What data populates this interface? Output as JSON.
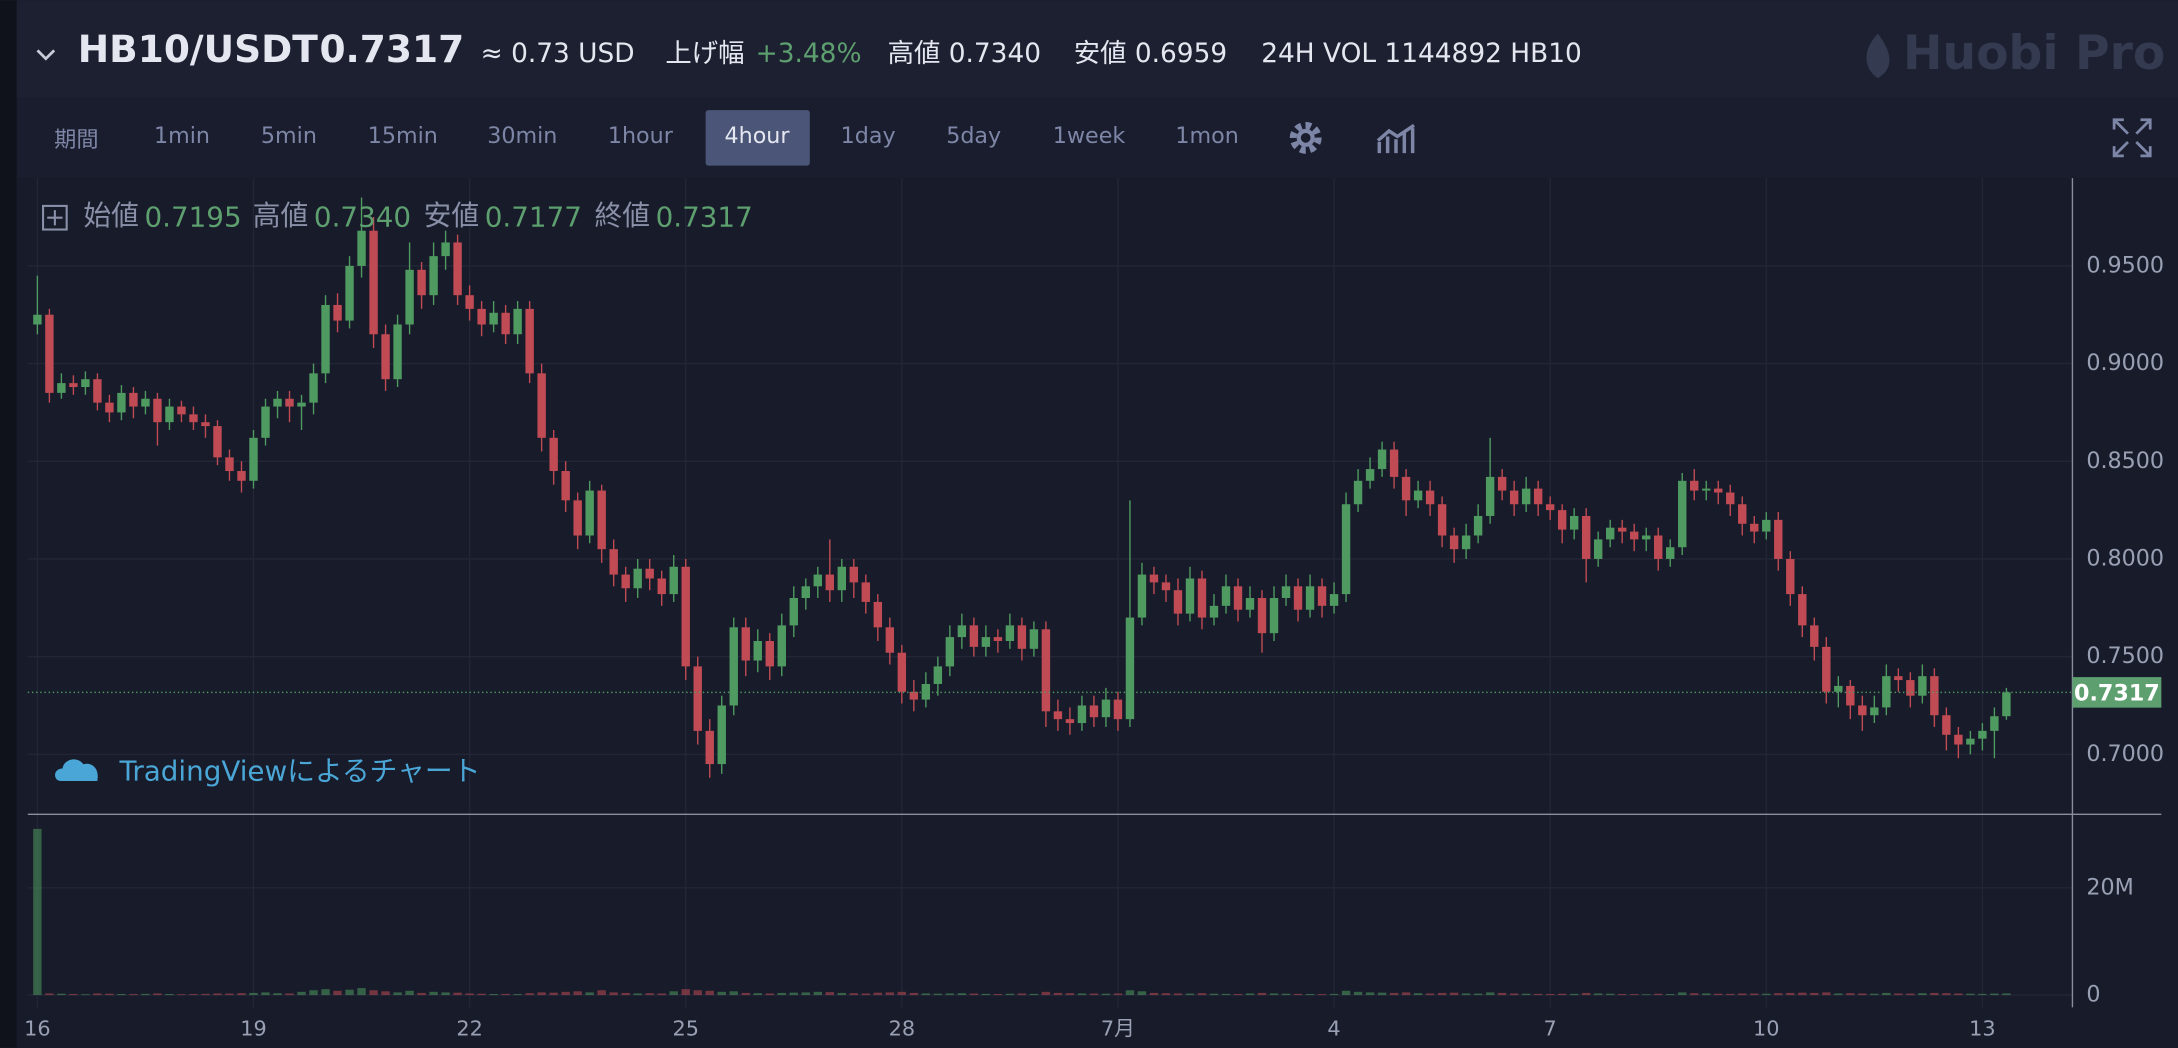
{
  "header": {
    "pair": "HB10/USDT",
    "price": "0.7317",
    "usd": "≈ 0.73 USD",
    "change_label": "上げ幅",
    "change": "+3.48%",
    "high": "高値 0.7340",
    "low": "安値 0.6959",
    "volume": "24H VOL 1144892 HB10",
    "logo": "Huobi Pro"
  },
  "toolbar": {
    "period_label": "期間",
    "intervals": [
      "1min",
      "5min",
      "15min",
      "30min",
      "1hour",
      "4hour",
      "1day",
      "5day",
      "1week",
      "1mon"
    ],
    "active": "4hour"
  },
  "chart_data": {
    "type": "candlestick",
    "watermark": "TradingViewによるチャート",
    "ohlc_legend": [
      {
        "label": "始値",
        "value": "0.7195"
      },
      {
        "label": "高値",
        "value": "0.7340"
      },
      {
        "label": "安値",
        "value": "0.7177"
      },
      {
        "label": "終値",
        "value": "0.7317"
      }
    ],
    "up_color": "#4e9a61",
    "down_color": "#c04b54",
    "grid": true,
    "ylim": [
      0.67,
      0.9935
    ],
    "yticks": [
      {
        "value": 0.7,
        "label": "0.7000"
      },
      {
        "value": 0.75,
        "label": "0.7500"
      },
      {
        "value": 0.8,
        "label": "0.8000"
      },
      {
        "value": 0.85,
        "label": "0.8500"
      },
      {
        "value": 0.9,
        "label": "0.9000"
      },
      {
        "value": 0.95,
        "label": "0.9500"
      }
    ],
    "volume_ylim": [
      -2300000,
      33200000
    ],
    "volume_yticks": [
      {
        "value": 0,
        "label": "0"
      },
      {
        "value": 20000000,
        "label": "20M"
      }
    ],
    "xlim": [
      -0.8,
      169.5
    ],
    "xticks": [
      {
        "value": 0,
        "label": "16"
      },
      {
        "value": 18,
        "label": "19"
      },
      {
        "value": 36,
        "label": "22"
      },
      {
        "value": 54,
        "label": "25"
      },
      {
        "value": 72,
        "label": "28"
      },
      {
        "value": 90,
        "label": "7月"
      },
      {
        "value": 108,
        "label": "4"
      },
      {
        "value": 126,
        "label": "7"
      },
      {
        "value": 144,
        "label": "10"
      },
      {
        "value": 162,
        "label": "13"
      }
    ],
    "ohlc": [
      [
        0.92,
        0.945,
        0.915,
        0.925
      ],
      [
        0.925,
        0.928,
        0.88,
        0.885
      ],
      [
        0.885,
        0.895,
        0.882,
        0.89
      ],
      [
        0.89,
        0.894,
        0.884,
        0.888
      ],
      [
        0.888,
        0.896,
        0.884,
        0.892
      ],
      [
        0.892,
        0.895,
        0.876,
        0.88
      ],
      [
        0.88,
        0.884,
        0.87,
        0.875
      ],
      [
        0.875,
        0.889,
        0.871,
        0.885
      ],
      [
        0.885,
        0.888,
        0.872,
        0.878
      ],
      [
        0.878,
        0.886,
        0.874,
        0.882
      ],
      [
        0.882,
        0.885,
        0.858,
        0.87
      ],
      [
        0.87,
        0.882,
        0.866,
        0.878
      ],
      [
        0.878,
        0.881,
        0.87,
        0.874
      ],
      [
        0.874,
        0.878,
        0.866,
        0.87
      ],
      [
        0.87,
        0.874,
        0.862,
        0.868
      ],
      [
        0.868,
        0.871,
        0.848,
        0.852
      ],
      [
        0.852,
        0.856,
        0.84,
        0.845
      ],
      [
        0.845,
        0.85,
        0.834,
        0.84
      ],
      [
        0.84,
        0.866,
        0.836,
        0.862
      ],
      [
        0.862,
        0.882,
        0.858,
        0.878
      ],
      [
        0.878,
        0.886,
        0.872,
        0.882
      ],
      [
        0.882,
        0.886,
        0.87,
        0.878
      ],
      [
        0.878,
        0.884,
        0.866,
        0.88
      ],
      [
        0.88,
        0.9,
        0.874,
        0.895
      ],
      [
        0.895,
        0.935,
        0.89,
        0.93
      ],
      [
        0.93,
        0.936,
        0.916,
        0.922
      ],
      [
        0.922,
        0.955,
        0.918,
        0.95
      ],
      [
        0.95,
        0.985,
        0.944,
        0.968
      ],
      [
        0.968,
        0.975,
        0.908,
        0.915
      ],
      [
        0.915,
        0.92,
        0.886,
        0.892
      ],
      [
        0.892,
        0.925,
        0.888,
        0.92
      ],
      [
        0.92,
        0.962,
        0.915,
        0.948
      ],
      [
        0.948,
        0.952,
        0.928,
        0.935
      ],
      [
        0.935,
        0.962,
        0.93,
        0.955
      ],
      [
        0.955,
        0.968,
        0.948,
        0.962
      ],
      [
        0.962,
        0.966,
        0.93,
        0.935
      ],
      [
        0.935,
        0.94,
        0.922,
        0.928
      ],
      [
        0.928,
        0.932,
        0.914,
        0.92
      ],
      [
        0.92,
        0.932,
        0.916,
        0.926
      ],
      [
        0.926,
        0.93,
        0.91,
        0.915
      ],
      [
        0.915,
        0.932,
        0.91,
        0.928
      ],
      [
        0.928,
        0.932,
        0.89,
        0.895
      ],
      [
        0.895,
        0.9,
        0.855,
        0.862
      ],
      [
        0.862,
        0.866,
        0.838,
        0.845
      ],
      [
        0.845,
        0.85,
        0.824,
        0.83
      ],
      [
        0.83,
        0.834,
        0.805,
        0.812
      ],
      [
        0.812,
        0.84,
        0.808,
        0.835
      ],
      [
        0.835,
        0.838,
        0.798,
        0.805
      ],
      [
        0.805,
        0.81,
        0.786,
        0.792
      ],
      [
        0.792,
        0.796,
        0.778,
        0.785
      ],
      [
        0.785,
        0.8,
        0.78,
        0.795
      ],
      [
        0.795,
        0.8,
        0.784,
        0.79
      ],
      [
        0.79,
        0.794,
        0.776,
        0.782
      ],
      [
        0.782,
        0.802,
        0.778,
        0.796
      ],
      [
        0.796,
        0.8,
        0.738,
        0.745
      ],
      [
        0.745,
        0.75,
        0.705,
        0.712
      ],
      [
        0.712,
        0.718,
        0.688,
        0.695
      ],
      [
        0.695,
        0.73,
        0.69,
        0.725
      ],
      [
        0.725,
        0.77,
        0.72,
        0.765
      ],
      [
        0.765,
        0.77,
        0.74,
        0.748
      ],
      [
        0.748,
        0.764,
        0.742,
        0.758
      ],
      [
        0.758,
        0.762,
        0.738,
        0.745
      ],
      [
        0.745,
        0.772,
        0.74,
        0.766
      ],
      [
        0.766,
        0.786,
        0.76,
        0.78
      ],
      [
        0.78,
        0.79,
        0.774,
        0.786
      ],
      [
        0.786,
        0.796,
        0.78,
        0.792
      ],
      [
        0.792,
        0.81,
        0.778,
        0.784
      ],
      [
        0.784,
        0.8,
        0.778,
        0.796
      ],
      [
        0.796,
        0.8,
        0.78,
        0.788
      ],
      [
        0.788,
        0.792,
        0.772,
        0.778
      ],
      [
        0.778,
        0.782,
        0.758,
        0.765
      ],
      [
        0.765,
        0.77,
        0.746,
        0.752
      ],
      [
        0.752,
        0.756,
        0.726,
        0.732
      ],
      [
        0.732,
        0.738,
        0.722,
        0.728
      ],
      [
        0.728,
        0.742,
        0.724,
        0.736
      ],
      [
        0.736,
        0.75,
        0.73,
        0.745
      ],
      [
        0.745,
        0.766,
        0.74,
        0.76
      ],
      [
        0.76,
        0.772,
        0.754,
        0.766
      ],
      [
        0.766,
        0.77,
        0.75,
        0.755
      ],
      [
        0.755,
        0.766,
        0.75,
        0.76
      ],
      [
        0.76,
        0.764,
        0.752,
        0.758
      ],
      [
        0.758,
        0.772,
        0.754,
        0.766
      ],
      [
        0.766,
        0.77,
        0.748,
        0.754
      ],
      [
        0.754,
        0.768,
        0.75,
        0.764
      ],
      [
        0.764,
        0.768,
        0.714,
        0.722
      ],
      [
        0.722,
        0.728,
        0.712,
        0.718
      ],
      [
        0.718,
        0.724,
        0.71,
        0.716
      ],
      [
        0.716,
        0.73,
        0.712,
        0.725
      ],
      [
        0.725,
        0.73,
        0.714,
        0.719
      ],
      [
        0.719,
        0.734,
        0.714,
        0.728
      ],
      [
        0.728,
        0.732,
        0.712,
        0.718
      ],
      [
        0.718,
        0.83,
        0.714,
        0.77
      ],
      [
        0.77,
        0.798,
        0.766,
        0.792
      ],
      [
        0.792,
        0.796,
        0.782,
        0.788
      ],
      [
        0.788,
        0.792,
        0.778,
        0.784
      ],
      [
        0.784,
        0.79,
        0.766,
        0.772
      ],
      [
        0.772,
        0.796,
        0.768,
        0.79
      ],
      [
        0.79,
        0.794,
        0.764,
        0.77
      ],
      [
        0.77,
        0.782,
        0.766,
        0.776
      ],
      [
        0.776,
        0.792,
        0.772,
        0.786
      ],
      [
        0.786,
        0.79,
        0.768,
        0.774
      ],
      [
        0.774,
        0.786,
        0.77,
        0.78
      ],
      [
        0.78,
        0.784,
        0.752,
        0.762
      ],
      [
        0.762,
        0.786,
        0.758,
        0.78
      ],
      [
        0.78,
        0.792,
        0.776,
        0.786
      ],
      [
        0.786,
        0.79,
        0.768,
        0.774
      ],
      [
        0.774,
        0.792,
        0.77,
        0.786
      ],
      [
        0.786,
        0.79,
        0.77,
        0.776
      ],
      [
        0.776,
        0.788,
        0.772,
        0.782
      ],
      [
        0.782,
        0.834,
        0.778,
        0.828
      ],
      [
        0.828,
        0.846,
        0.824,
        0.84
      ],
      [
        0.84,
        0.852,
        0.836,
        0.846
      ],
      [
        0.846,
        0.86,
        0.842,
        0.856
      ],
      [
        0.856,
        0.86,
        0.836,
        0.842
      ],
      [
        0.842,
        0.846,
        0.822,
        0.83
      ],
      [
        0.83,
        0.84,
        0.826,
        0.835
      ],
      [
        0.835,
        0.84,
        0.822,
        0.828
      ],
      [
        0.828,
        0.832,
        0.806,
        0.812
      ],
      [
        0.812,
        0.816,
        0.798,
        0.805
      ],
      [
        0.805,
        0.818,
        0.8,
        0.812
      ],
      [
        0.812,
        0.828,
        0.808,
        0.822
      ],
      [
        0.822,
        0.862,
        0.818,
        0.842
      ],
      [
        0.842,
        0.846,
        0.83,
        0.835
      ],
      [
        0.835,
        0.84,
        0.822,
        0.828
      ],
      [
        0.828,
        0.842,
        0.824,
        0.836
      ],
      [
        0.836,
        0.84,
        0.822,
        0.828
      ],
      [
        0.828,
        0.832,
        0.82,
        0.825
      ],
      [
        0.825,
        0.828,
        0.808,
        0.815
      ],
      [
        0.815,
        0.826,
        0.81,
        0.822
      ],
      [
        0.822,
        0.826,
        0.788,
        0.8
      ],
      [
        0.8,
        0.814,
        0.796,
        0.81
      ],
      [
        0.81,
        0.82,
        0.806,
        0.816
      ],
      [
        0.816,
        0.82,
        0.808,
        0.814
      ],
      [
        0.814,
        0.818,
        0.804,
        0.81
      ],
      [
        0.81,
        0.816,
        0.804,
        0.812
      ],
      [
        0.812,
        0.816,
        0.794,
        0.8
      ],
      [
        0.8,
        0.81,
        0.796,
        0.806
      ],
      [
        0.806,
        0.844,
        0.802,
        0.84
      ],
      [
        0.84,
        0.846,
        0.83,
        0.835
      ],
      [
        0.835,
        0.84,
        0.83,
        0.836
      ],
      [
        0.836,
        0.84,
        0.828,
        0.834
      ],
      [
        0.834,
        0.838,
        0.822,
        0.828
      ],
      [
        0.828,
        0.832,
        0.812,
        0.818
      ],
      [
        0.818,
        0.822,
        0.808,
        0.814
      ],
      [
        0.814,
        0.824,
        0.81,
        0.82
      ],
      [
        0.82,
        0.824,
        0.794,
        0.8
      ],
      [
        0.8,
        0.804,
        0.776,
        0.782
      ],
      [
        0.782,
        0.786,
        0.76,
        0.766
      ],
      [
        0.766,
        0.77,
        0.748,
        0.755
      ],
      [
        0.755,
        0.76,
        0.726,
        0.732
      ],
      [
        0.732,
        0.74,
        0.724,
        0.735
      ],
      [
        0.735,
        0.738,
        0.718,
        0.725
      ],
      [
        0.725,
        0.73,
        0.712,
        0.72
      ],
      [
        0.72,
        0.73,
        0.716,
        0.724
      ],
      [
        0.724,
        0.746,
        0.72,
        0.74
      ],
      [
        0.74,
        0.744,
        0.732,
        0.738
      ],
      [
        0.738,
        0.742,
        0.724,
        0.73
      ],
      [
        0.73,
        0.746,
        0.726,
        0.74
      ],
      [
        0.74,
        0.744,
        0.714,
        0.72
      ],
      [
        0.72,
        0.724,
        0.702,
        0.71
      ],
      [
        0.71,
        0.714,
        0.698,
        0.705
      ],
      [
        0.705,
        0.712,
        0.7,
        0.708
      ],
      [
        0.708,
        0.716,
        0.702,
        0.712
      ],
      [
        0.712,
        0.724,
        0.698,
        0.7195
      ],
      [
        0.7195,
        0.734,
        0.7177,
        0.7317
      ]
    ],
    "volumes": [
      31000000,
      300000,
      250000,
      200000,
      150000,
      300000,
      250000,
      200000,
      180000,
      220000,
      300000,
      200000,
      150000,
      180000,
      220000,
      300000,
      280000,
      350000,
      400000,
      500000,
      350000,
      300000,
      600000,
      900000,
      1100000,
      800000,
      1000000,
      1300000,
      900000,
      700000,
      500000,
      800000,
      400000,
      600000,
      500000,
      450000,
      300000,
      250000,
      200000,
      220000,
      180000,
      350000,
      500000,
      450000,
      600000,
      700000,
      500000,
      900000,
      500000,
      400000,
      300000,
      350000,
      300000,
      700000,
      1100000,
      900000,
      800000,
      600000,
      700000,
      400000,
      350000,
      300000,
      400000,
      450000,
      500000,
      600000,
      550000,
      400000,
      350000,
      300000,
      450000,
      500000,
      600000,
      400000,
      300000,
      250000,
      300000,
      350000,
      280000,
      220000,
      200000,
      250000,
      300000,
      220000,
      600000,
      400000,
      350000,
      300000,
      280000,
      250000,
      300000,
      900000,
      700000,
      400000,
      350000,
      300000,
      280000,
      350000,
      250000,
      220000,
      200000,
      300000,
      400000,
      300000,
      250000,
      220000,
      200000,
      180000,
      220000,
      800000,
      600000,
      500000,
      450000,
      400000,
      500000,
      350000,
      300000,
      400000,
      450000,
      300000,
      280000,
      500000,
      400000,
      300000,
      250000,
      220000,
      200000,
      250000,
      220000,
      400000,
      300000,
      250000,
      200000,
      180000,
      160000,
      250000,
      200000,
      500000,
      350000,
      300000,
      250000,
      220000,
      300000,
      280000,
      250000,
      350000,
      400000,
      450000,
      400000,
      500000,
      300000,
      350000,
      300000,
      250000,
      400000,
      300000,
      280000,
      350000,
      400000,
      350000,
      300000,
      250000,
      220000,
      280000,
      300000
    ]
  }
}
